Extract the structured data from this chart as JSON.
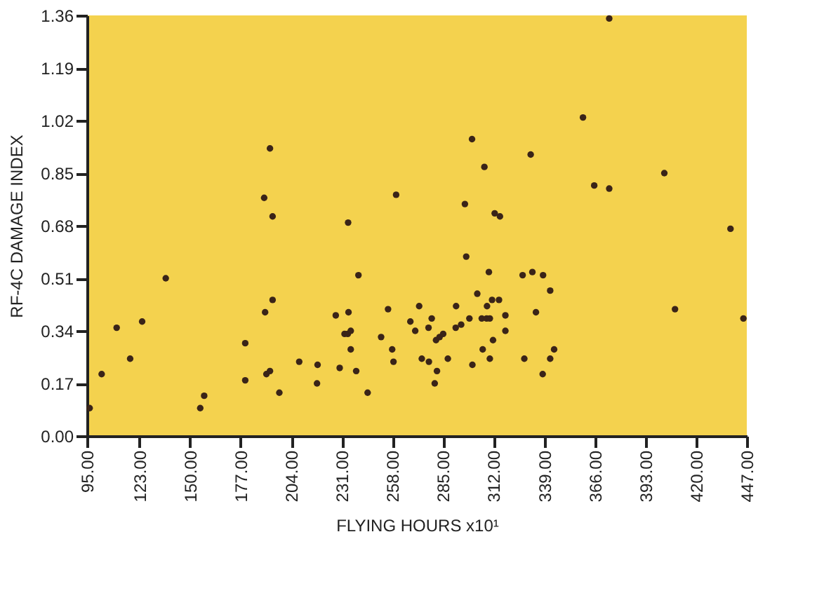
{
  "chart_data": {
    "type": "scatter",
    "xlabel": "FLYING HOURS     x10¹",
    "ylabel": "RF-4C    DAMAGE INDEX",
    "xlim": [
      95,
      447
    ],
    "ylim": [
      0,
      1.36
    ],
    "xticks": [
      {
        "value": 95,
        "label": "95.00"
      },
      {
        "value": 123,
        "label": "123.00"
      },
      {
        "value": 150,
        "label": "150.00"
      },
      {
        "value": 177,
        "label": "177.00"
      },
      {
        "value": 204,
        "label": "204.00"
      },
      {
        "value": 231,
        "label": "231.00"
      },
      {
        "value": 258,
        "label": "258.00"
      },
      {
        "value": 285,
        "label": "285.00"
      },
      {
        "value": 312,
        "label": "312.00"
      },
      {
        "value": 339,
        "label": "339.00"
      },
      {
        "value": 366,
        "label": "366.00"
      },
      {
        "value": 393,
        "label": "393.00"
      },
      {
        "value": 420,
        "label": "420.00"
      },
      {
        "value": 447,
        "label": "447.00"
      }
    ],
    "yticks": [
      {
        "value": 0,
        "label": "0.00"
      },
      {
        "value": 0.17,
        "label": "0.17"
      },
      {
        "value": 0.34,
        "label": "0.34"
      },
      {
        "value": 0.51,
        "label": "0.51"
      },
      {
        "value": 0.68,
        "label": "0.68"
      },
      {
        "value": 0.85,
        "label": "0.85"
      },
      {
        "value": 1.02,
        "label": "1.02"
      },
      {
        "value": 1.19,
        "label": "1.19"
      },
      {
        "value": 1.36,
        "label": "1.36"
      }
    ],
    "grid": false,
    "marker": "circle",
    "series": [
      {
        "color": "#3a2418",
        "x": [
          192.6,
          189.5,
          194.0,
          234.3,
          137.0,
          239.8,
          373.6,
          359.6,
          300.4,
          331.7,
          307.0,
          403.0,
          365.6,
          373.6,
          259.9,
          296.6,
          312.5,
          315.3,
          438.3,
          297.3,
          309.4,
          327.4,
          332.6,
          338.3,
          342.1,
          303.2,
          96.4,
          102.8,
          110.8,
          118.0,
          124.4,
          155.4,
          157.5,
          179.4,
          179.4,
          190.0,
          194.0,
          190.7,
          192.6,
          197.6,
          208.2,
          218.0,
          217.7,
          227.7,
          229.8,
          234.5,
          232.4,
          234.1,
          235.7,
          235.7,
          238.6,
          244.7,
          255.6,
          251.9,
          257.8,
          258.5,
          272.2,
          267.5,
          270.1,
          278.9,
          277.2,
          273.6,
          277.4,
          281.7,
          280.5,
          281.2,
          283.1,
          285.0,
          287.5,
          291.9,
          291.7,
          294.6,
          299.0,
          300.6,
          305.6,
          308.2,
          309.9,
          308.4,
          311.1,
          314.8,
          306.1,
          309.9,
          311.6,
          318.2,
          318.2,
          334.5,
          328.3,
          338.1,
          342.1,
          344.2,
          408.7,
          445.2
        ],
        "values": [
          0.93,
          0.77,
          0.71,
          0.69,
          0.51,
          0.52,
          1.35,
          1.03,
          0.96,
          0.91,
          0.87,
          0.85,
          0.81,
          0.8,
          0.78,
          0.75,
          0.72,
          0.71,
          0.67,
          0.58,
          0.53,
          0.52,
          0.53,
          0.52,
          0.47,
          0.46,
          0.09,
          0.2,
          0.35,
          0.25,
          0.37,
          0.09,
          0.13,
          0.3,
          0.18,
          0.4,
          0.44,
          0.2,
          0.21,
          0.14,
          0.24,
          0.23,
          0.17,
          0.39,
          0.22,
          0.4,
          0.33,
          0.33,
          0.34,
          0.28,
          0.21,
          0.14,
          0.41,
          0.32,
          0.28,
          0.24,
          0.42,
          0.37,
          0.34,
          0.38,
          0.35,
          0.25,
          0.24,
          0.21,
          0.17,
          0.31,
          0.32,
          0.33,
          0.25,
          0.42,
          0.35,
          0.36,
          0.38,
          0.23,
          0.38,
          0.38,
          0.38,
          0.42,
          0.44,
          0.44,
          0.28,
          0.25,
          0.31,
          0.39,
          0.34,
          0.4,
          0.25,
          0.2,
          0.25,
          0.28,
          0.41,
          0.38
        ]
      }
    ]
  }
}
